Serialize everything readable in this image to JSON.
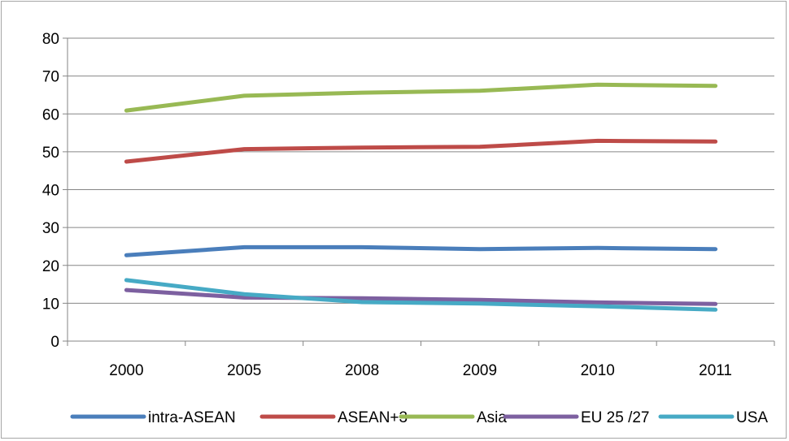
{
  "chart_data": {
    "type": "line",
    "title": "",
    "xlabel": "",
    "ylabel": "",
    "categories": [
      "2000",
      "2005",
      "2008",
      "2009",
      "2010",
      "2011"
    ],
    "ylim": [
      0,
      80
    ],
    "yticks": [
      0,
      10,
      20,
      30,
      40,
      50,
      60,
      70,
      80
    ],
    "grid": true,
    "legend_position": "bottom",
    "series": [
      {
        "name": "intra-ASEAN",
        "color": "#4a7ebb",
        "values": [
          22.7,
          24.8,
          24.8,
          24.3,
          24.6,
          24.3
        ]
      },
      {
        "name": "ASEAN+3",
        "color": "#be4b48",
        "values": [
          47.4,
          50.7,
          51.1,
          51.3,
          52.9,
          52.7
        ]
      },
      {
        "name": "Asia",
        "color": "#98b954",
        "values": [
          60.9,
          64.8,
          65.6,
          66.1,
          67.7,
          67.4
        ]
      },
      {
        "name": "EU 25 /27",
        "color": "#7d60a0",
        "values": [
          13.5,
          11.5,
          11.3,
          10.9,
          10.2,
          9.8
        ]
      },
      {
        "name": "USA",
        "color": "#46aac5",
        "values": [
          16.1,
          12.4,
          10.3,
          9.9,
          9.2,
          8.3
        ]
      }
    ]
  }
}
